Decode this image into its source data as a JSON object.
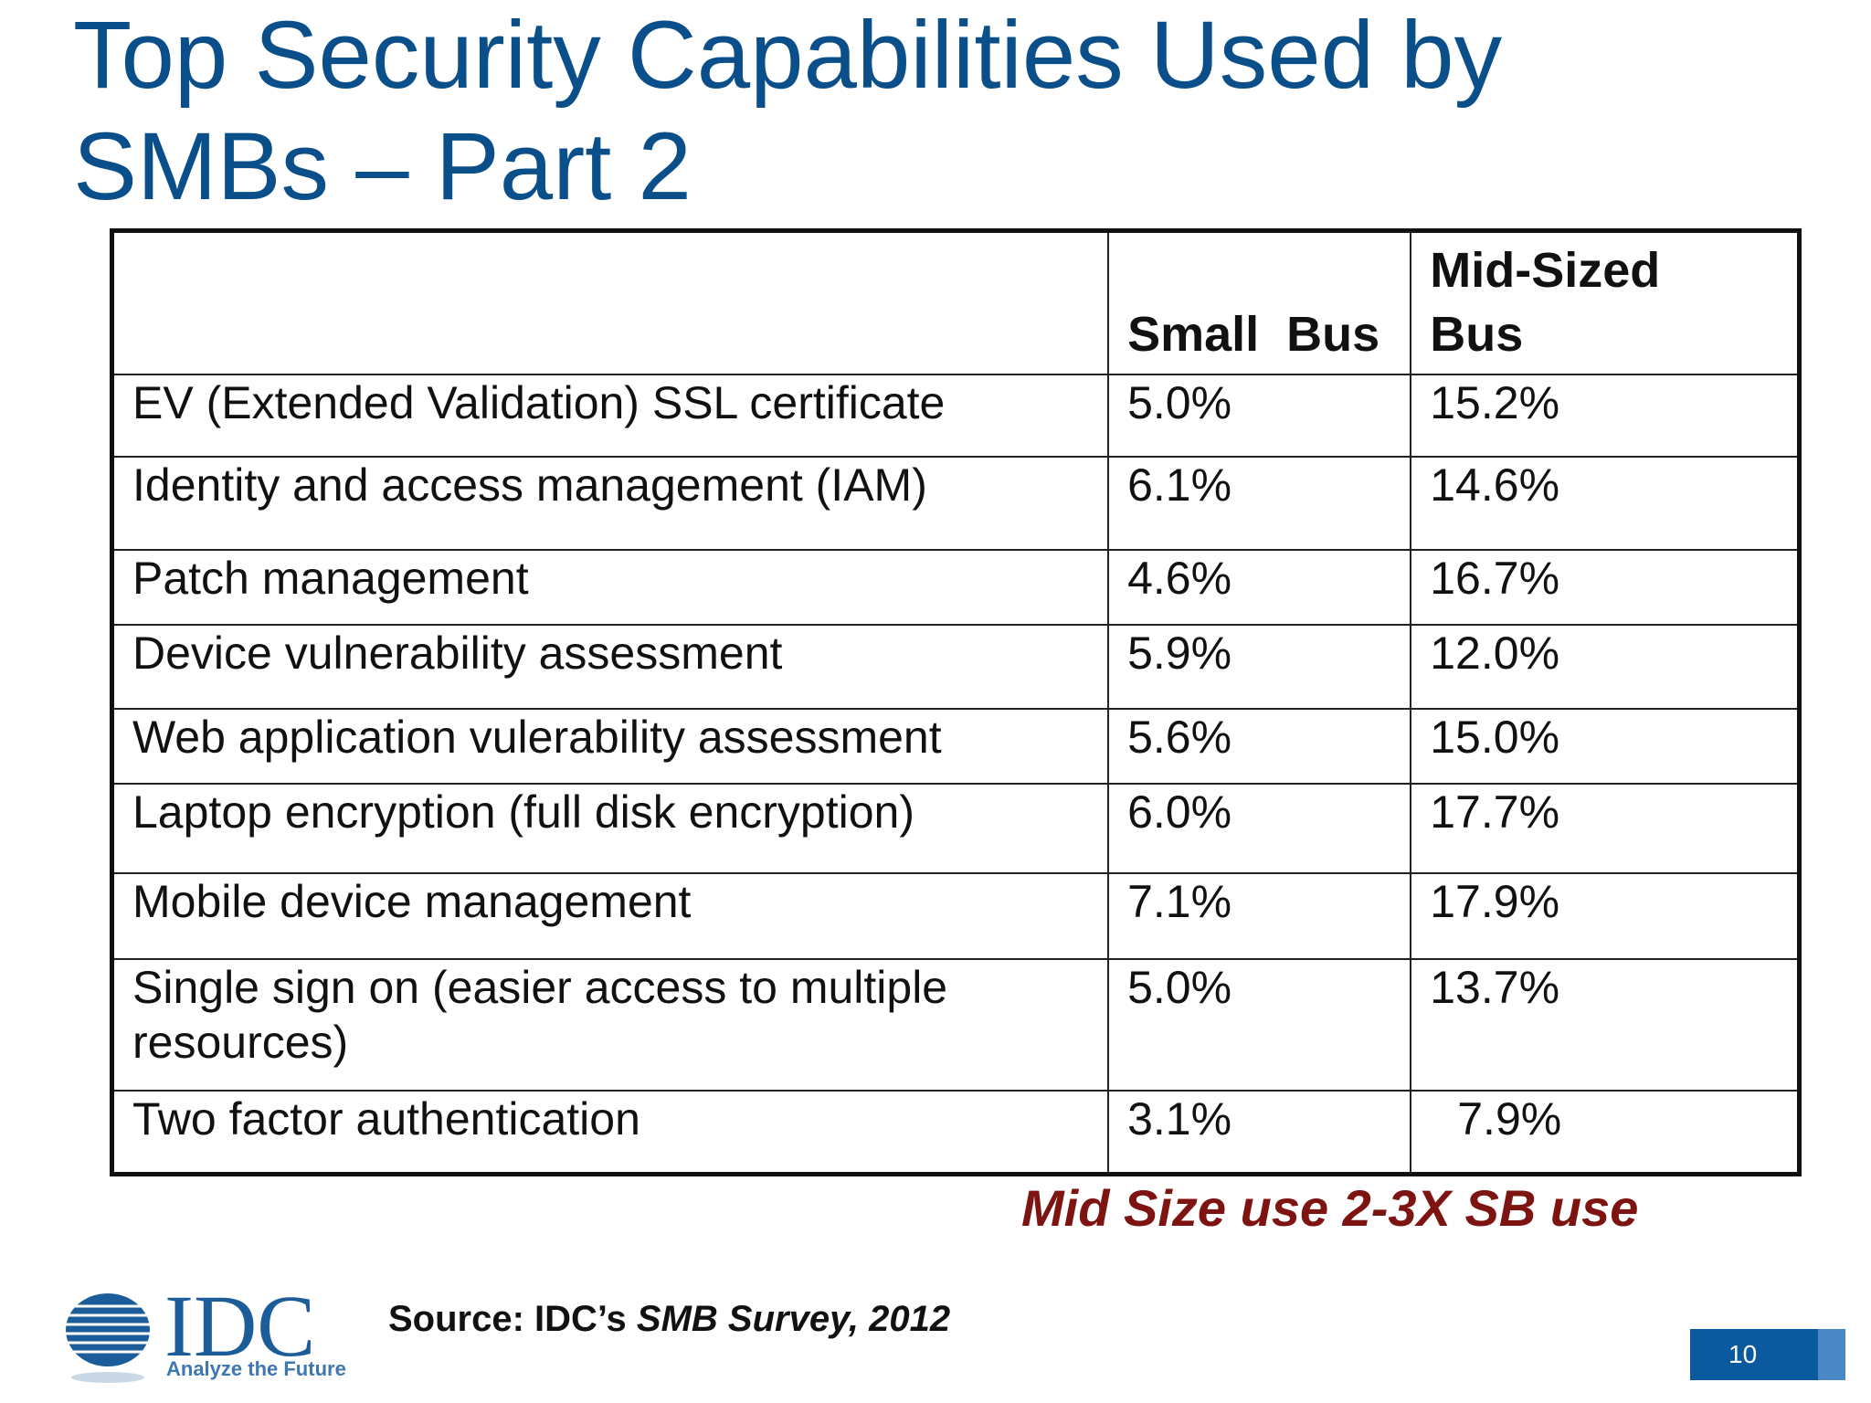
{
  "slide": {
    "title_line1": "Top Security Capabilities Used by",
    "title_line2": "SMBs – Part 2",
    "page_number": "10"
  },
  "table": {
    "headers": [
      "",
      "Small  Bus",
      "Mid-Sized Bus"
    ],
    "rows": [
      {
        "capability": "EV (Extended Validation) SSL certificate",
        "small": "5.0%",
        "mid": "15.2%"
      },
      {
        "capability": "Identity and access management (IAM)",
        "small": "6.1%",
        "mid": "14.6%"
      },
      {
        "capability": "Patch management",
        "small": "4.6%",
        "mid": "16.7%"
      },
      {
        "capability": "Device vulnerability assessment",
        "small": "5.9%",
        "mid": "12.0%"
      },
      {
        "capability": "Web application vulerability assessment",
        "small": "5.6%",
        "mid": "15.0%"
      },
      {
        "capability": "Laptop encryption (full disk encryption)",
        "small": "6.0%",
        "mid": "17.7%"
      },
      {
        "capability": "Mobile device management",
        "small": "7.1%",
        "mid": "17.9%"
      },
      {
        "capability": "Single sign on (easier access to multiple resources)",
        "small": "5.0%",
        "mid": "13.7%"
      },
      {
        "capability": "Two factor authentication",
        "small": "3.1%",
        "mid": "7.9%"
      }
    ]
  },
  "note": "Mid Size use 2-3X  SB use",
  "source": {
    "prefix": "Source: IDC’s ",
    "title": "SMB Survey, 2012"
  },
  "logo": {
    "text": "IDC",
    "tagline": "Analyze the Future",
    "accent_color": "#1c5d99"
  },
  "colors": {
    "title": "#0a4f8a",
    "note": "#7d1411",
    "page_box": "#0b5aa0"
  }
}
